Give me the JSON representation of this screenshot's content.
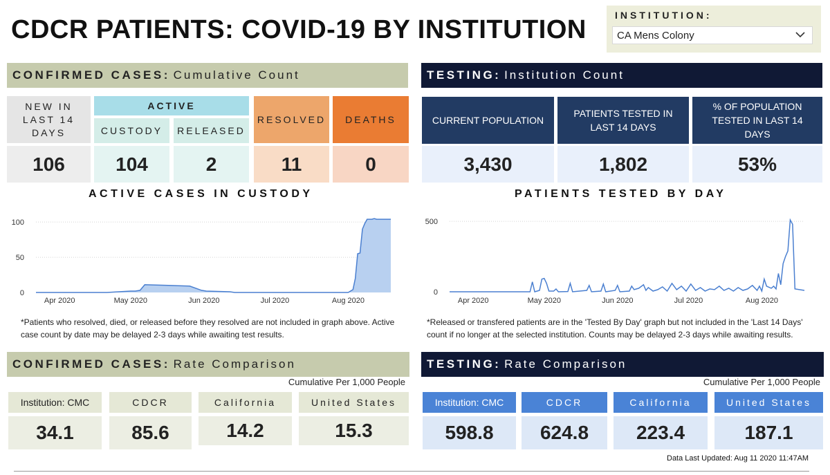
{
  "title": "CDCR PATIENTS: COVID-19 BY INSTITUTION",
  "institution": {
    "label": "INSTITUTION:",
    "selected": "CA Mens Colony"
  },
  "confirmed": {
    "header_bold": "CONFIRMED CASES:",
    "header_light": "Cumulative Count",
    "new14_label": "NEW IN LAST 14 DAYS",
    "new14_value": "106",
    "active_label": "ACTIVE",
    "custody_label": "CUSTODY",
    "custody_value": "104",
    "released_label": "RELEASED",
    "released_value": "2",
    "resolved_label": "RESOLVED",
    "resolved_value": "11",
    "deaths_label": "DEATHS",
    "deaths_value": "0"
  },
  "testing": {
    "header_bold": "TESTING:",
    "header_light": "Institution Count",
    "pop_label": "CURRENT POPULATION",
    "pop_value": "3,430",
    "tested_label": "PATIENTS TESTED IN LAST 14 DAYS",
    "tested_value": "1,802",
    "pct_label": "% OF POPULATION TESTED IN LAST 14 DAYS",
    "pct_value": "53%"
  },
  "chart_data": [
    {
      "type": "area",
      "title": "ACTIVE CASES IN CUSTODY",
      "xlabel": "",
      "ylabel": "",
      "ylim": [
        0,
        110
      ],
      "yticks": [
        0,
        50,
        100
      ],
      "x_tick_labels": [
        "Apr 2020",
        "May 2020",
        "Jun 2020",
        "Jul 2020",
        "Aug 2020"
      ],
      "x_tick_days": [
        10,
        40,
        71,
        101,
        132
      ],
      "day_start": "2020-03-22",
      "series": [
        {
          "name": "Active cases in custody",
          "x": [
            0,
            30,
            40,
            42,
            44,
            46,
            56,
            65,
            70,
            72,
            82,
            84,
            91,
            132,
            134,
            135,
            136,
            137,
            138,
            139,
            140,
            142,
            143,
            144,
            146,
            150
          ],
          "y": [
            0,
            0,
            2,
            2,
            3,
            11,
            10,
            9,
            3,
            2,
            1,
            0,
            0,
            0,
            4,
            20,
            55,
            56,
            90,
            98,
            104,
            104,
            105,
            104,
            104,
            104
          ]
        }
      ],
      "note": "*Patients who resolved, died, or released before they resolved are not included in graph above. Active case count by date may be delayed 2-3 days while awaiting test results."
    },
    {
      "type": "line",
      "title": "PATIENTS TESTED BY DAY",
      "xlabel": "",
      "ylabel": "",
      "ylim": [
        0,
        550
      ],
      "yticks": [
        0,
        500
      ],
      "x_tick_labels": [
        "Apr 2020",
        "May 2020",
        "Jun 2020",
        "Jul 2020",
        "Aug 2020"
      ],
      "x_tick_days": [
        10,
        40,
        71,
        101,
        132
      ],
      "day_start": "2020-03-22",
      "series": [
        {
          "name": "Patients tested",
          "x": [
            0,
            34,
            35,
            36,
            38,
            39,
            40,
            41,
            42,
            44,
            45,
            46,
            50,
            51,
            52,
            58,
            59,
            60,
            64,
            65,
            66,
            70,
            71,
            72,
            76,
            77,
            78,
            80,
            82,
            83,
            84,
            86,
            88,
            90,
            92,
            94,
            96,
            98,
            100,
            102,
            104,
            106,
            108,
            110,
            112,
            114,
            116,
            118,
            120,
            122,
            124,
            126,
            128,
            130,
            131,
            132,
            133,
            134,
            136,
            137,
            138,
            139,
            140,
            141,
            142,
            143,
            144,
            145,
            146,
            150
          ],
          "y": [
            0,
            0,
            70,
            0,
            10,
            90,
            95,
            60,
            5,
            5,
            20,
            0,
            2,
            60,
            0,
            10,
            45,
            0,
            5,
            55,
            0,
            10,
            45,
            0,
            5,
            40,
            15,
            25,
            50,
            10,
            30,
            5,
            15,
            35,
            5,
            60,
            15,
            40,
            5,
            55,
            10,
            30,
            5,
            20,
            15,
            40,
            10,
            25,
            5,
            30,
            10,
            20,
            45,
            10,
            40,
            5,
            90,
            40,
            25,
            40,
            20,
            130,
            50,
            200,
            250,
            290,
            510,
            480,
            20,
            10
          ]
        }
      ],
      "note": "*Released or transfered patients are in the 'Tested By Day' graph but not included in the 'Last 14 Days' count if no longer at the selected institution. Counts may be delayed 2-3 days while awaiting results."
    }
  ],
  "rate_confirmed": {
    "header_bold": "CONFIRMED CASES:",
    "header_light": "Rate Comparison",
    "subtitle": "Cumulative Per 1,000 People",
    "items": [
      {
        "label": "Institution: CMC",
        "value": "34.1"
      },
      {
        "label": "CDCR",
        "value": "85.6"
      },
      {
        "label": "California",
        "value": "14.2"
      },
      {
        "label": "United States",
        "value": "15.3"
      }
    ]
  },
  "rate_testing": {
    "header_bold": "TESTING:",
    "header_light": "Rate Comparison",
    "subtitle": "Cumulative Per 1,000 People",
    "items": [
      {
        "label": "Institution: CMC",
        "value": "598.8"
      },
      {
        "label": "CDCR",
        "value": "624.8"
      },
      {
        "label": "California",
        "value": "223.4"
      },
      {
        "label": "United States",
        "value": "187.1"
      }
    ]
  },
  "footer": {
    "updated": "Data Last Updated: Aug 11 2020 11:47AM"
  },
  "colors": {
    "navy": "#101935",
    "tile_navy": "#223b63",
    "olive": "#c6cbad",
    "area_fill": "#b8d0f0",
    "line_blue": "#4a7fd0"
  }
}
